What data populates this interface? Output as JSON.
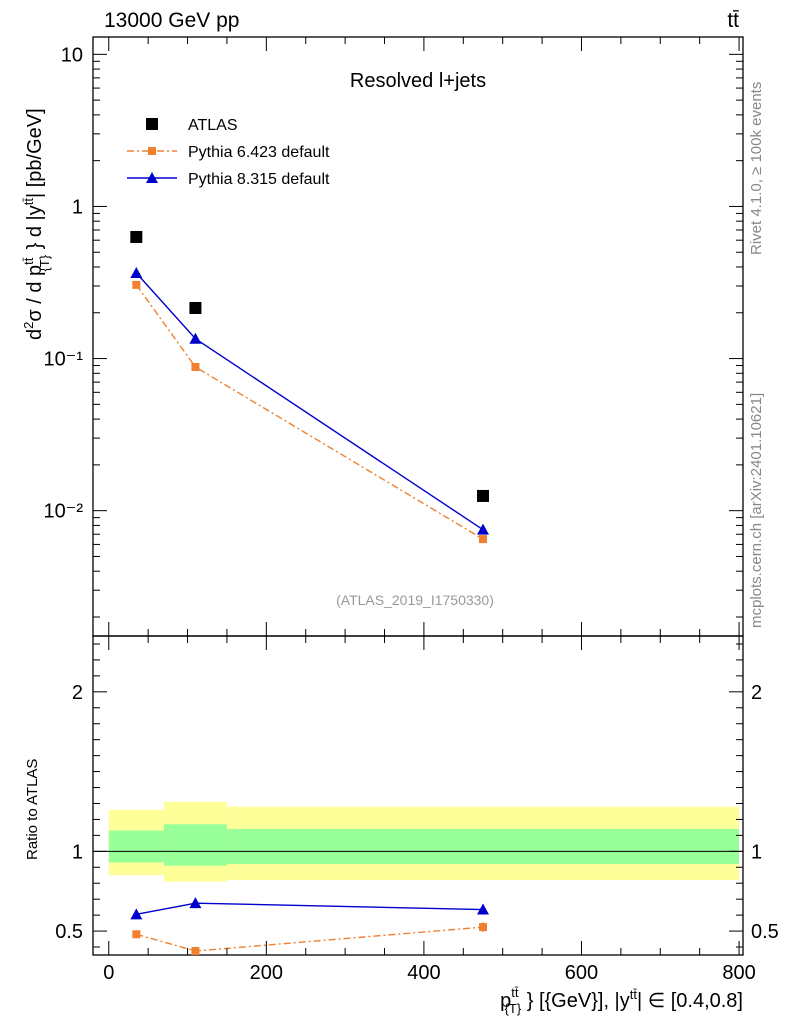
{
  "header": {
    "left_label": "13000 GeV pp",
    "right_label": "tt̄"
  },
  "side_labels": {
    "rivet": "Rivet 4.1.0, ≥ 100k events",
    "mcplots": "mcplots.cern.ch [arXiv:2401.10621]"
  },
  "chart_data": [
    {
      "type": "line",
      "title": "Resolved l+jets",
      "ylabel": "d²σ / d p_T^{tt̄} d |y^{tt̄}| [pb/GeV]",
      "xlabel": "",
      "yscale": "log",
      "ylim": [
        0.0015,
        13
      ],
      "xlim": [
        -20,
        805
      ],
      "y_ticks": [
        {
          "value": 10,
          "label": "10"
        },
        {
          "value": 1,
          "label": "1"
        },
        {
          "value": 0.1,
          "label": "10⁻¹"
        },
        {
          "value": 0.01,
          "label": "10⁻²"
        }
      ],
      "watermark": "(ATLAS_2019_I1750330)",
      "legend_position": "top-left",
      "series": [
        {
          "name": "ATLAS",
          "color": "#000000",
          "marker": "square",
          "line": "none",
          "x": [
            35,
            110,
            475
          ],
          "y": [
            0.63,
            0.215,
            0.0125
          ]
        },
        {
          "name": "Pythia 6.423 default",
          "color": "#f08030",
          "marker": "square-small",
          "line": "dashdot",
          "x": [
            35,
            110,
            475
          ],
          "y": [
            0.305,
            0.088,
            0.0065
          ]
        },
        {
          "name": "Pythia 8.315 default",
          "color": "#0000cc",
          "marker": "triangle",
          "line": "solid",
          "x": [
            35,
            110,
            475
          ],
          "y": [
            0.365,
            0.135,
            0.0075
          ]
        }
      ]
    },
    {
      "type": "line",
      "ylabel": "Ratio to ATLAS",
      "xlabel": "p_T^{tt̄} [{GeV}], |y^{tt̄}| ∈ [0.4,0.8]",
      "ylim": [
        0.35,
        2.35
      ],
      "xlim": [
        -20,
        805
      ],
      "x_ticks": [
        0,
        200,
        400,
        600,
        800
      ],
      "y_ticks": [
        0.5,
        1,
        2
      ],
      "bands": [
        {
          "name": "stat+syst",
          "color": "#ffff99",
          "bins": [
            [
              0,
              70,
              0.85,
              1.26
            ],
            [
              70,
              150,
              0.81,
              1.31
            ],
            [
              150,
              800,
              0.82,
              1.28
            ]
          ]
        },
        {
          "name": "stat",
          "color": "#99ff99",
          "bins": [
            [
              0,
              70,
              0.93,
              1.13
            ],
            [
              70,
              150,
              0.91,
              1.17
            ],
            [
              150,
              800,
              0.92,
              1.14
            ]
          ]
        }
      ],
      "series": [
        {
          "name": "Pythia 6.423 default",
          "color": "#f08030",
          "marker": "square-small",
          "line": "dashdot",
          "x": [
            35,
            110,
            475
          ],
          "y": [
            0.48,
            0.375,
            0.525
          ],
          "err": [
            0.01,
            0.01,
            0.03
          ]
        },
        {
          "name": "Pythia 8.315 default",
          "color": "#0000cc",
          "marker": "triangle",
          "line": "solid",
          "x": [
            35,
            110,
            475
          ],
          "y": [
            0.605,
            0.675,
            0.635
          ],
          "err": [
            0.01,
            0.025,
            0.03
          ]
        }
      ]
    }
  ]
}
